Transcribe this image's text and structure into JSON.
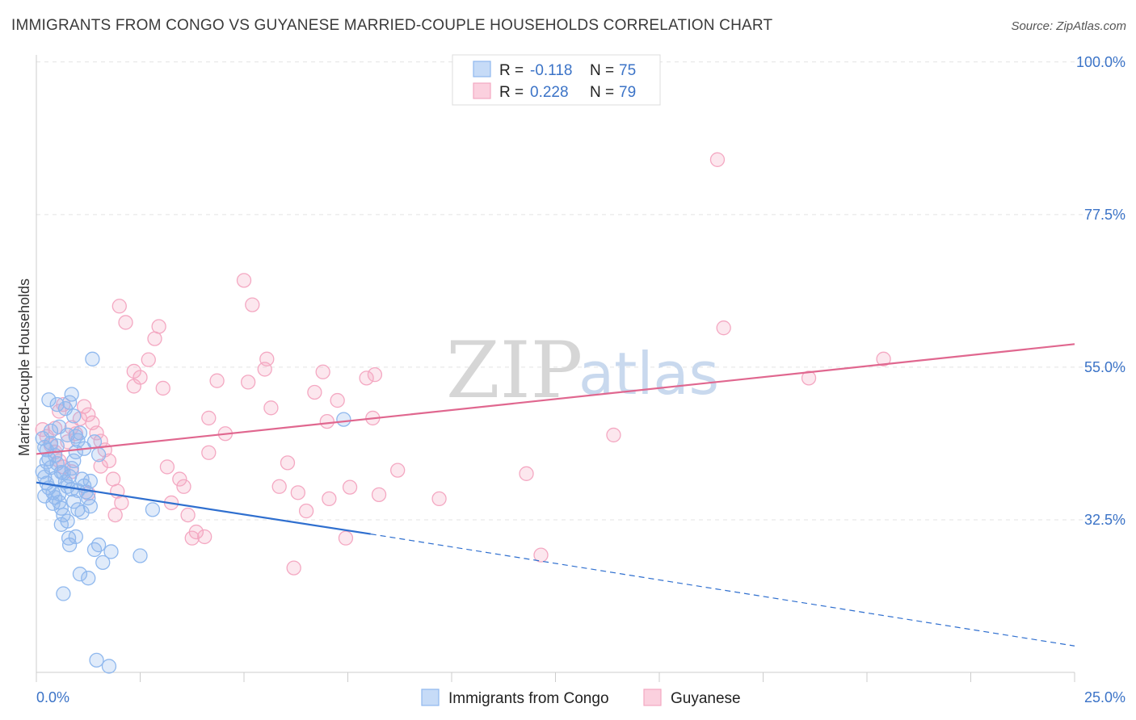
{
  "title": "IMMIGRANTS FROM CONGO VS GUYANESE MARRIED-COUPLE HOUSEHOLDS CORRELATION CHART",
  "source": "Source: ZipAtlas.com",
  "watermark": {
    "part1": "ZIP",
    "part2": "atlas"
  },
  "legend": {
    "rows": [
      {
        "r_label": "R =",
        "r_value": "-0.118",
        "n_label": "N =",
        "n_value": "75",
        "color": "#8fb8ee"
      },
      {
        "r_label": "R =",
        "r_value": "0.228",
        "n_label": "N =",
        "n_value": "79",
        "color": "#f4a8c2"
      }
    ]
  },
  "bottom_legend": [
    {
      "label": "Immigrants from Congo",
      "color": "#8fb8ee"
    },
    {
      "label": "Guyanese",
      "color": "#f4a8c2"
    }
  ],
  "chart_data": {
    "type": "scatter",
    "title": "IMMIGRANTS FROM CONGO VS GUYANESE MARRIED-COUPLE HOUSEHOLDS CORRELATION CHART",
    "xlabel": "",
    "ylabel": "Married-couple Households",
    "xlim": [
      0,
      25
    ],
    "ylim": [
      10,
      102
    ],
    "x_tick_labels": [
      "0.0%",
      "25.0%"
    ],
    "y_ticks": [
      32.5,
      55.0,
      77.5,
      100.0
    ],
    "y_tick_labels": [
      "32.5%",
      "55.0%",
      "77.5%",
      "100.0%"
    ],
    "grid": true,
    "legend_position": "top-center",
    "series": [
      {
        "name": "Immigrants from Congo",
        "color": "#8fb8ee",
        "line_color": "#2f6fcf",
        "trend": {
          "x": [
            0,
            8.05
          ],
          "y": [
            38.0,
            30.4
          ],
          "dashed_to": [
            25,
            13.9
          ]
        },
        "points": [
          [
            0.15,
            44.5
          ],
          [
            0.2,
            43.2
          ],
          [
            0.25,
            42.8
          ],
          [
            0.3,
            41.5
          ],
          [
            0.35,
            40.2
          ],
          [
            0.15,
            39.6
          ],
          [
            0.2,
            38.8
          ],
          [
            0.25,
            37.9
          ],
          [
            0.3,
            37.2
          ],
          [
            0.4,
            36.5
          ],
          [
            0.45,
            35.8
          ],
          [
            0.55,
            35.1
          ],
          [
            0.6,
            34.2
          ],
          [
            0.65,
            33.2
          ],
          [
            0.75,
            37.4
          ],
          [
            0.8,
            38.9
          ],
          [
            0.85,
            40.1
          ],
          [
            0.9,
            41.2
          ],
          [
            0.95,
            42.5
          ],
          [
            1.0,
            44.2
          ],
          [
            1.05,
            45.3
          ],
          [
            1.1,
            38.5
          ],
          [
            1.15,
            37.5
          ],
          [
            1.2,
            36.6
          ],
          [
            1.25,
            35.7
          ],
          [
            0.35,
            43.8
          ],
          [
            0.45,
            42.0
          ],
          [
            0.5,
            40.8
          ],
          [
            0.6,
            39.5
          ],
          [
            0.7,
            38.1
          ],
          [
            0.3,
            50.2
          ],
          [
            0.5,
            49.5
          ],
          [
            0.7,
            48.9
          ],
          [
            0.9,
            47.8
          ],
          [
            0.8,
            49.8
          ],
          [
            0.85,
            51.0
          ],
          [
            1.4,
            44.0
          ],
          [
            1.5,
            42.1
          ],
          [
            1.3,
            34.5
          ],
          [
            1.0,
            34.0
          ],
          [
            0.6,
            31.8
          ],
          [
            0.75,
            32.3
          ],
          [
            0.78,
            29.8
          ],
          [
            0.8,
            28.8
          ],
          [
            0.95,
            30.0
          ],
          [
            1.4,
            28.1
          ],
          [
            1.5,
            28.8
          ],
          [
            1.6,
            26.2
          ],
          [
            1.8,
            27.8
          ],
          [
            2.5,
            27.2
          ],
          [
            1.05,
            24.5
          ],
          [
            1.25,
            23.9
          ],
          [
            0.65,
            21.6
          ],
          [
            1.45,
            11.8
          ],
          [
            1.75,
            10.9
          ],
          [
            1.35,
            56.2
          ],
          [
            7.4,
            47.3
          ],
          [
            2.8,
            34.0
          ],
          [
            0.2,
            36.0
          ],
          [
            0.4,
            34.9
          ],
          [
            0.55,
            36.3
          ],
          [
            0.9,
            35.2
          ],
          [
            1.1,
            33.6
          ],
          [
            1.3,
            38.2
          ],
          [
            0.25,
            41.0
          ],
          [
            0.45,
            38.6
          ],
          [
            0.65,
            39.4
          ],
          [
            0.85,
            37.0
          ],
          [
            1.0,
            36.8
          ],
          [
            1.15,
            43.0
          ],
          [
            0.35,
            45.6
          ],
          [
            0.55,
            46.2
          ],
          [
            0.75,
            45.0
          ],
          [
            0.95,
            44.8
          ],
          [
            0.5,
            43.4
          ]
        ]
      },
      {
        "name": "Guyanese",
        "color": "#f4a8c2",
        "line_color": "#e0678f",
        "trend": {
          "x": [
            0,
            25
          ],
          "y": [
            42.2,
            58.4
          ]
        },
        "points": [
          [
            0.15,
            45.8
          ],
          [
            0.25,
            44.8
          ],
          [
            0.35,
            43.5
          ],
          [
            0.45,
            42.5
          ],
          [
            0.55,
            41.2
          ],
          [
            0.65,
            40.3
          ],
          [
            0.75,
            44.0
          ],
          [
            0.85,
            46.1
          ],
          [
            0.95,
            45.2
          ],
          [
            1.05,
            47.4
          ],
          [
            1.15,
            49.2
          ],
          [
            1.25,
            48.0
          ],
          [
            1.35,
            46.8
          ],
          [
            1.45,
            45.3
          ],
          [
            1.55,
            44.1
          ],
          [
            1.65,
            42.8
          ],
          [
            1.75,
            41.2
          ],
          [
            1.85,
            38.5
          ],
          [
            1.95,
            36.7
          ],
          [
            2.05,
            35.0
          ],
          [
            0.55,
            48.5
          ],
          [
            0.65,
            49.5
          ],
          [
            0.45,
            46.0
          ],
          [
            0.85,
            39.6
          ],
          [
            1.25,
            36.4
          ],
          [
            1.55,
            40.4
          ],
          [
            1.9,
            33.2
          ],
          [
            2.0,
            64.0
          ],
          [
            2.15,
            61.6
          ],
          [
            2.35,
            54.4
          ],
          [
            2.35,
            52.2
          ],
          [
            2.5,
            53.5
          ],
          [
            2.7,
            56.1
          ],
          [
            2.85,
            59.2
          ],
          [
            2.95,
            61.0
          ],
          [
            3.05,
            51.9
          ],
          [
            3.15,
            40.3
          ],
          [
            3.45,
            38.5
          ],
          [
            3.55,
            37.4
          ],
          [
            3.25,
            35.0
          ],
          [
            3.65,
            33.2
          ],
          [
            3.85,
            30.7
          ],
          [
            4.05,
            30.0
          ],
          [
            3.75,
            29.8
          ],
          [
            4.15,
            47.5
          ],
          [
            4.35,
            53.0
          ],
          [
            4.55,
            45.2
          ],
          [
            4.15,
            42.4
          ],
          [
            5.0,
            67.8
          ],
          [
            5.1,
            52.8
          ],
          [
            5.2,
            64.2
          ],
          [
            5.5,
            54.7
          ],
          [
            5.55,
            56.2
          ],
          [
            5.65,
            49.0
          ],
          [
            5.85,
            37.4
          ],
          [
            6.05,
            40.9
          ],
          [
            6.3,
            36.5
          ],
          [
            6.5,
            33.8
          ],
          [
            6.7,
            51.3
          ],
          [
            6.9,
            54.3
          ],
          [
            7.0,
            47.0
          ],
          [
            7.05,
            35.6
          ],
          [
            7.25,
            50.1
          ],
          [
            7.55,
            37.3
          ],
          [
            7.95,
            53.4
          ],
          [
            8.1,
            47.5
          ],
          [
            8.25,
            36.2
          ],
          [
            7.45,
            29.8
          ],
          [
            8.15,
            53.9
          ],
          [
            8.7,
            39.8
          ],
          [
            9.7,
            35.6
          ],
          [
            11.8,
            39.3
          ],
          [
            12.15,
            27.3
          ],
          [
            13.9,
            45.0
          ],
          [
            16.4,
            85.6
          ],
          [
            16.55,
            60.8
          ],
          [
            18.6,
            53.4
          ],
          [
            20.4,
            56.2
          ],
          [
            6.2,
            25.4
          ]
        ]
      }
    ]
  }
}
